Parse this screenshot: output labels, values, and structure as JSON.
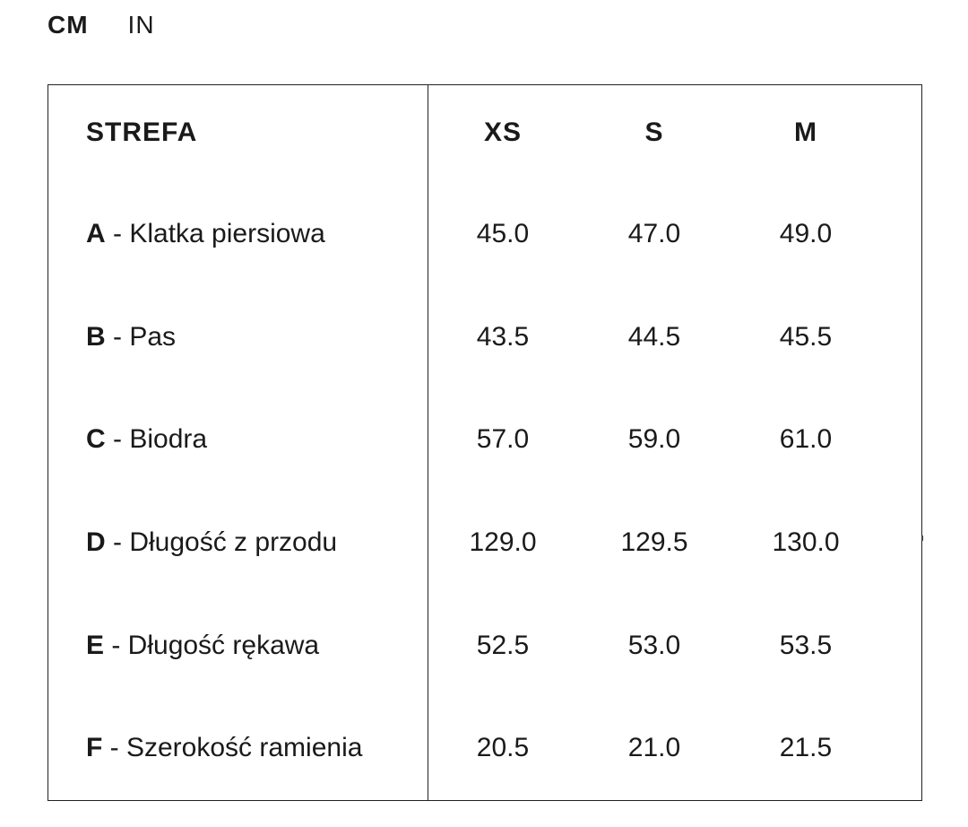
{
  "units": {
    "active": "CM",
    "inactive": "IN"
  },
  "table": {
    "header": {
      "zone": "STREFA",
      "sizes": [
        "XS",
        "S",
        "M"
      ]
    },
    "rows": [
      {
        "letter": "A",
        "label": " - Klatka piersiowa",
        "values": [
          "45.0",
          "47.0",
          "49.0"
        ]
      },
      {
        "letter": "B",
        "label": " - Pas",
        "values": [
          "43.5",
          "44.5",
          "45.5"
        ]
      },
      {
        "letter": "C",
        "label": " - Biodra",
        "values": [
          "57.0",
          "59.0",
          "61.0"
        ]
      },
      {
        "letter": "D",
        "label": " - Długość z przodu",
        "values": [
          "129.0",
          "129.5",
          "130.0"
        ]
      },
      {
        "letter": "E",
        "label": " - Długość rękawa",
        "values": [
          "52.5",
          "53.0",
          "53.5"
        ]
      },
      {
        "letter": "F",
        "label": " - Szerokość ramienia",
        "values": [
          "20.5",
          "21.0",
          "21.5"
        ]
      }
    ]
  }
}
